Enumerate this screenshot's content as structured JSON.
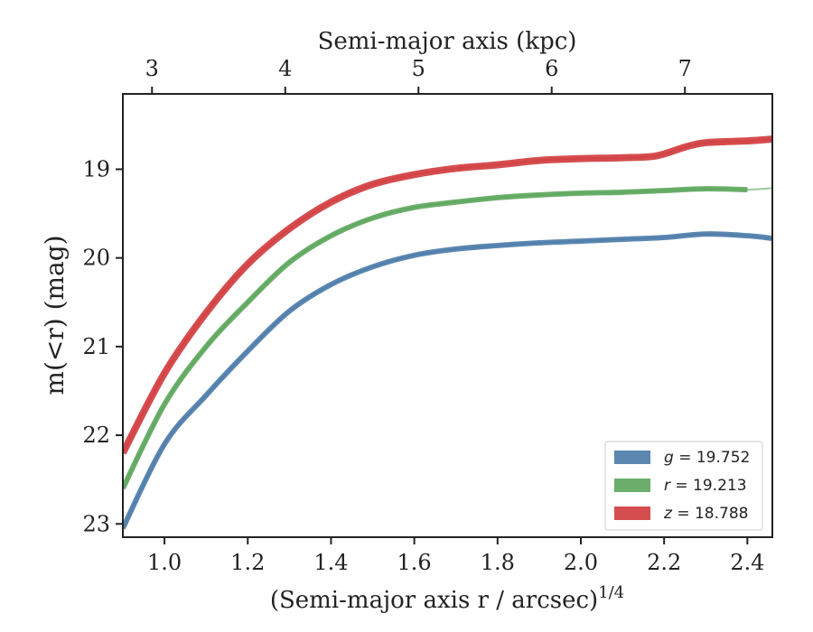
{
  "chart_data": {
    "type": "line",
    "xlabel": "(Semi-major axis r / arcsec)",
    "xlabel_var": "r",
    "xlabel_exponent": "1/4",
    "ylabel": "m(<r) (mag)",
    "top_xlabel": "Semi-major axis (kpc)",
    "xlim": [
      0.9,
      2.46
    ],
    "ylim": [
      23.15,
      18.15
    ],
    "y_inverted": true,
    "x_ticks": [
      "1.0",
      "1.2",
      "1.4",
      "1.6",
      "1.8",
      "2.0",
      "2.2",
      "2.4"
    ],
    "y_ticks": [
      "19",
      "20",
      "21",
      "22",
      "23"
    ],
    "top_x_ticks": [
      {
        "label": "3",
        "x": 0.97
      },
      {
        "label": "4",
        "x": 1.29
      },
      {
        "label": "5",
        "x": 1.61
      },
      {
        "label": "6",
        "x": 1.93
      },
      {
        "label": "7",
        "x": 2.25
      }
    ],
    "legend_position": "lower-right",
    "grid": false,
    "series": [
      {
        "name": "g",
        "legend": "= 19.752",
        "color": "#4a7aa8",
        "band_width": 0.03,
        "x": [
          0.9,
          1.0,
          1.1,
          1.2,
          1.3,
          1.4,
          1.5,
          1.6,
          1.7,
          1.8,
          1.9,
          2.0,
          2.1,
          2.2,
          2.3,
          2.4,
          2.46
        ],
        "y": [
          23.05,
          22.1,
          21.55,
          21.05,
          20.6,
          20.3,
          20.1,
          19.97,
          19.9,
          19.86,
          19.83,
          19.81,
          19.79,
          19.77,
          19.73,
          19.75,
          19.78
        ],
        "model_y": 19.752
      },
      {
        "name": "r",
        "legend": "= 19.213",
        "color": "#5ba55b",
        "band_width": 0.03,
        "x": [
          0.9,
          1.0,
          1.1,
          1.2,
          1.3,
          1.4,
          1.5,
          1.6,
          1.7,
          1.8,
          1.9,
          2.0,
          2.1,
          2.2,
          2.3,
          2.4
        ],
        "y": [
          22.6,
          21.65,
          21.0,
          20.5,
          20.05,
          19.75,
          19.55,
          19.43,
          19.37,
          19.32,
          19.29,
          19.27,
          19.26,
          19.24,
          19.22,
          19.23
        ],
        "model_y": 19.213
      },
      {
        "name": "z",
        "legend": "= 18.788",
        "color": "#d03a3c",
        "band_width": 0.04,
        "x": [
          0.9,
          1.0,
          1.1,
          1.2,
          1.3,
          1.4,
          1.5,
          1.6,
          1.7,
          1.8,
          1.9,
          2.0,
          2.1,
          2.18,
          2.25,
          2.3,
          2.4,
          2.46
        ],
        "y": [
          22.2,
          21.3,
          20.62,
          20.07,
          19.67,
          19.37,
          19.17,
          19.06,
          18.99,
          18.95,
          18.9,
          18.88,
          18.87,
          18.85,
          18.75,
          18.7,
          18.68,
          18.66
        ],
        "model_y": 18.788
      }
    ]
  }
}
